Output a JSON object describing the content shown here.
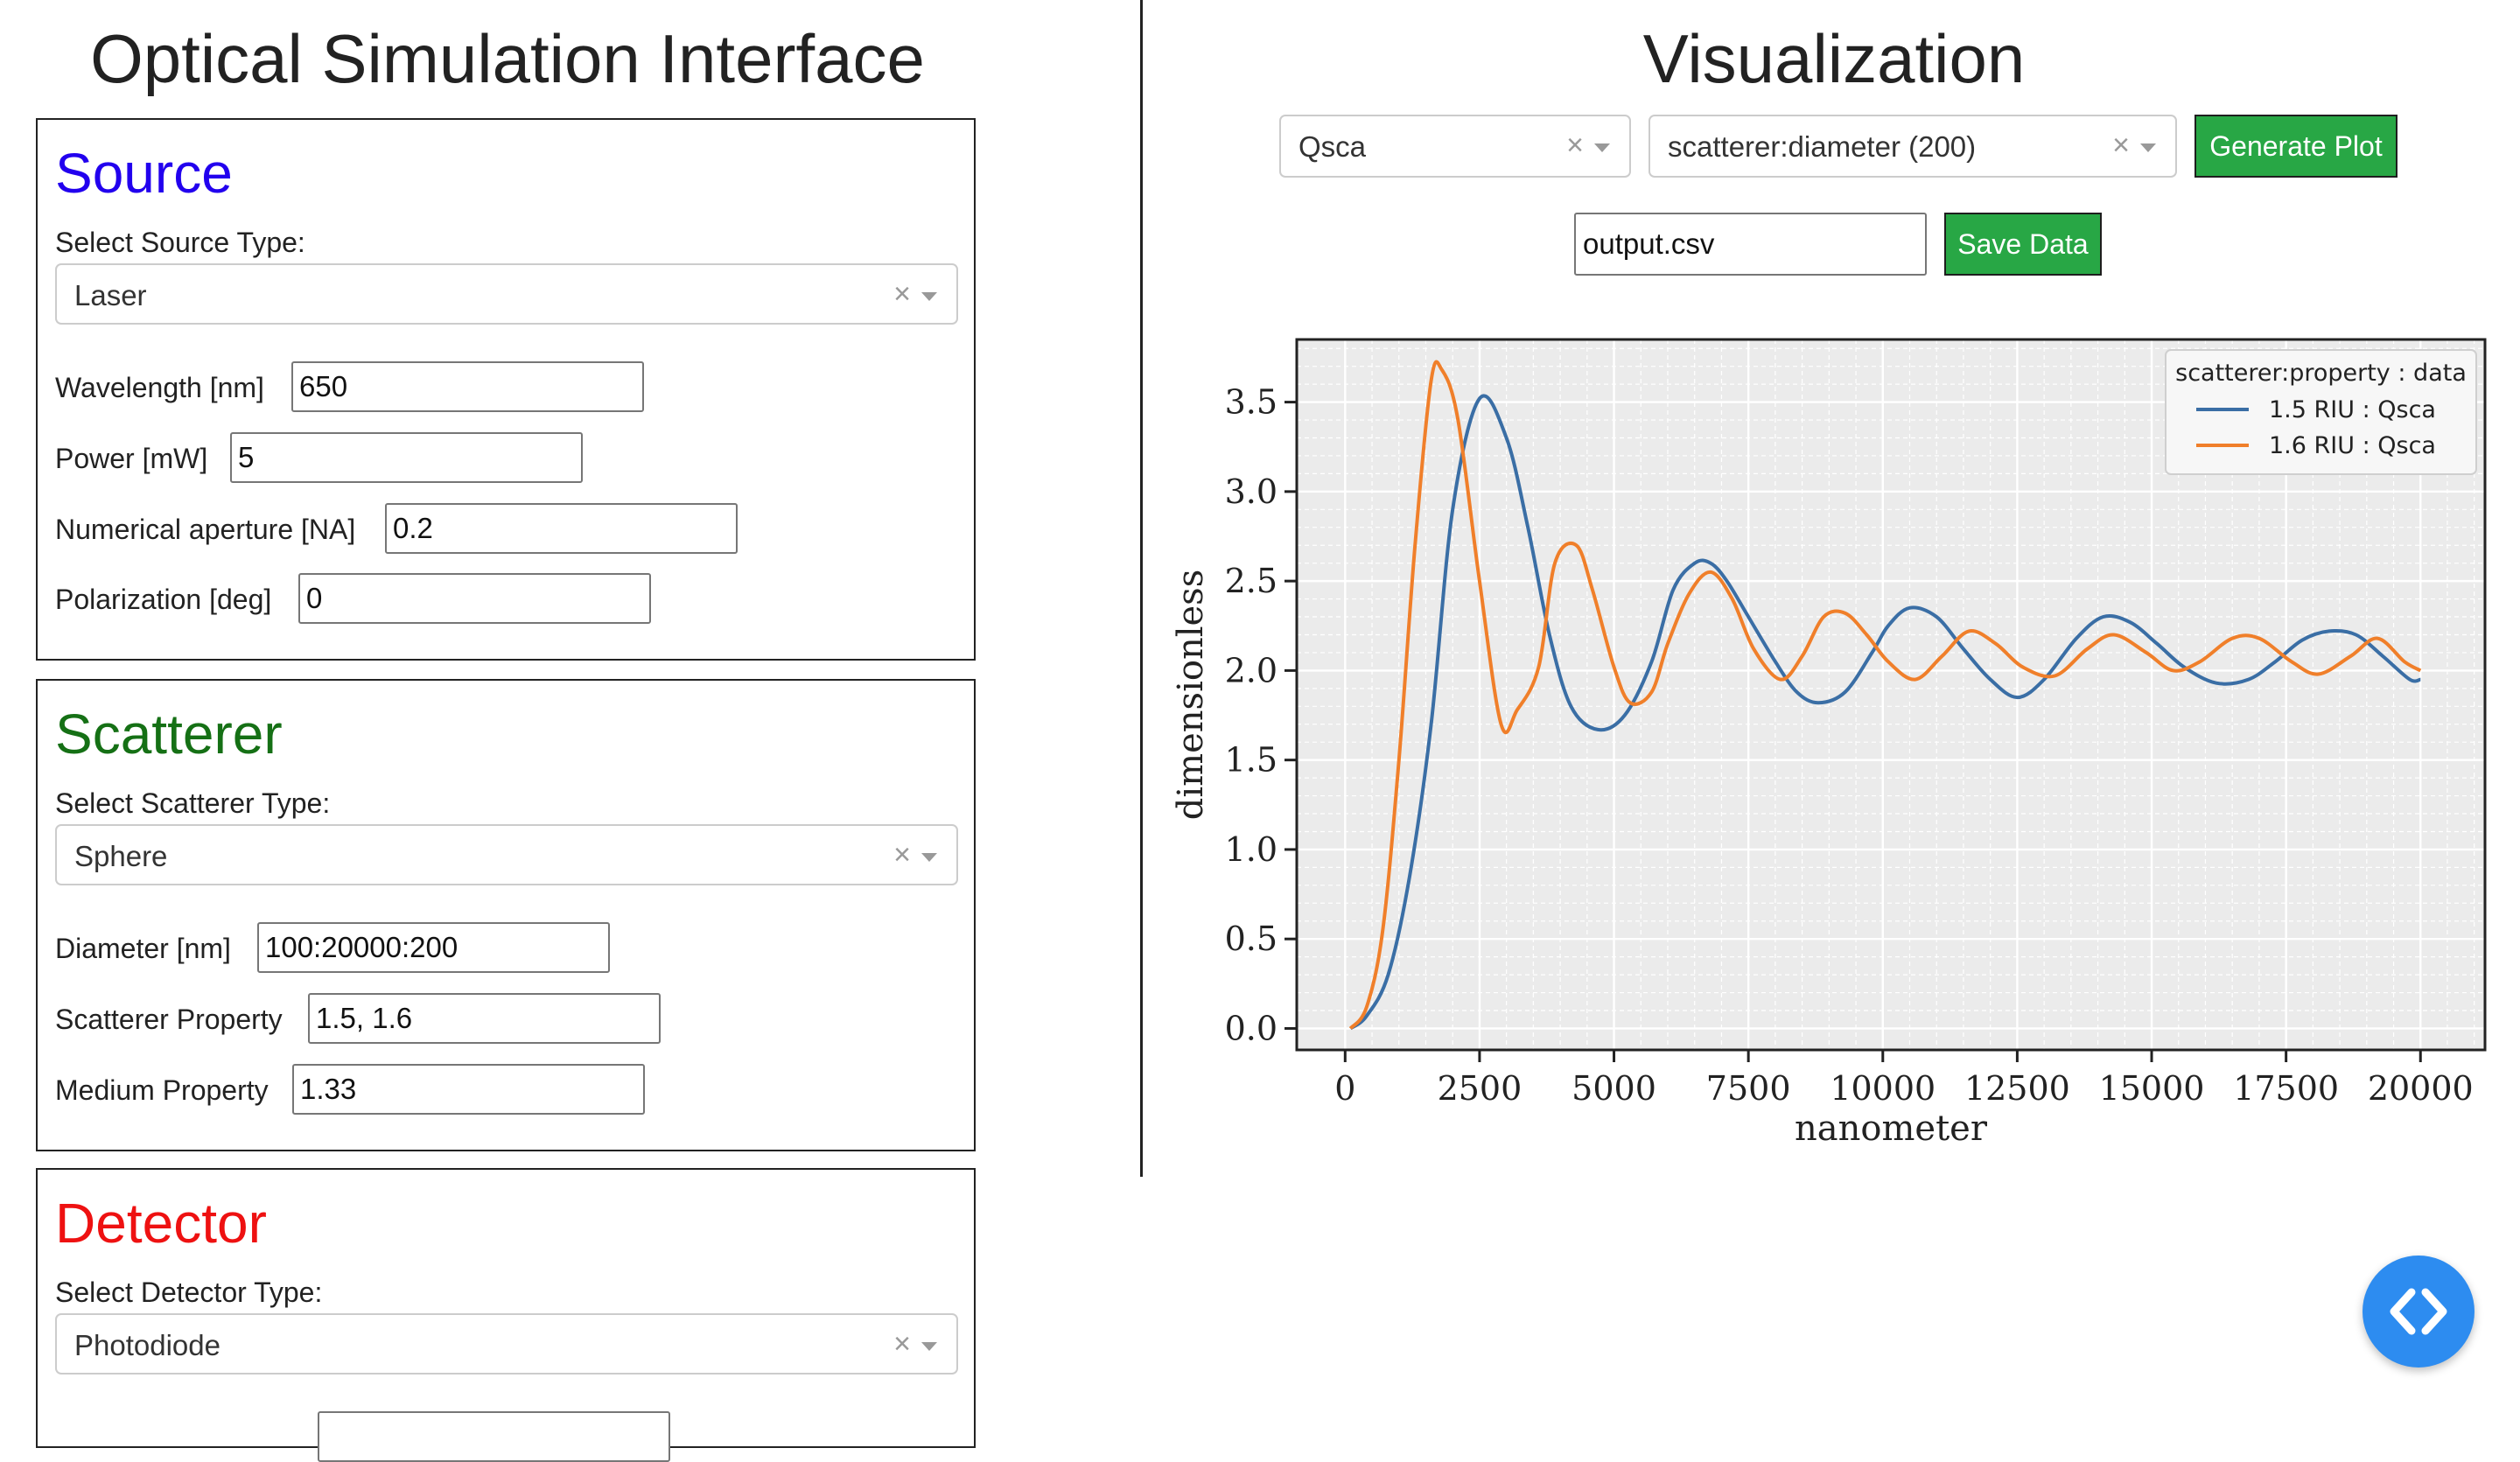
{
  "left": {
    "title": "Optical Simulation Interface",
    "source": {
      "heading": "Source",
      "heading_color": "#2200ee",
      "select_label": "Select Source Type:",
      "select_value": "Laser",
      "fields": [
        {
          "label": "Wavelength [nm]",
          "value": "650"
        },
        {
          "label": "Power [mW]",
          "value": "5"
        },
        {
          "label": "Numerical aperture [NA]",
          "value": "0.2"
        },
        {
          "label": "Polarization [deg]",
          "value": "0"
        }
      ]
    },
    "scatterer": {
      "heading": "Scatterer",
      "heading_color": "#157015",
      "select_label": "Select Scatterer Type:",
      "select_value": "Sphere",
      "fields": [
        {
          "label": "Diameter [nm]",
          "value": "100:20000:200"
        },
        {
          "label": "Scatterer Property",
          "value": "1.5, 1.6"
        },
        {
          "label": "Medium Property",
          "value": "1.33"
        }
      ]
    },
    "detector": {
      "heading": "Detector",
      "heading_color": "#ee1111",
      "select_label": "Select Detector Type:",
      "select_value": "Photodiode"
    }
  },
  "right": {
    "title": "Visualization",
    "y_select_value": "Qsca",
    "x_select_value": "scatterer:diameter (200)",
    "generate_label": "Generate Plot",
    "filename_value": "output.csv",
    "save_label": "Save Data"
  },
  "icons": {
    "clear": "close-icon",
    "dropdown": "chevron-down-icon",
    "code": "code-brackets-icon"
  },
  "colors": {
    "button_green": "#28a745",
    "fab_blue": "#2d8cf0"
  },
  "chart_data": {
    "type": "line",
    "xlabel": "nanometer",
    "ylabel": "dimensionless",
    "xlim": [
      -900,
      21200
    ],
    "ylim": [
      -0.12,
      3.85
    ],
    "xticks": [
      0,
      2500,
      5000,
      7500,
      10000,
      12500,
      15000,
      17500,
      20000
    ],
    "yticks": [
      0.0,
      0.5,
      1.0,
      1.5,
      2.0,
      2.5,
      3.0,
      3.5
    ],
    "grid": true,
    "legend_title": "scatterer:property : data",
    "legend_position": "top-right",
    "series": [
      {
        "name": "1.5 RIU : Qsca",
        "color": "#3a6ea5",
        "points": [
          [
            100,
            0.0
          ],
          [
            400,
            0.07
          ],
          [
            800,
            0.3
          ],
          [
            1200,
            0.85
          ],
          [
            1600,
            1.7
          ],
          [
            2000,
            2.9
          ],
          [
            2500,
            3.52
          ],
          [
            3000,
            3.3
          ],
          [
            3400,
            2.8
          ],
          [
            3800,
            2.2
          ],
          [
            4200,
            1.8
          ],
          [
            4700,
            1.67
          ],
          [
            5200,
            1.75
          ],
          [
            5700,
            2.05
          ],
          [
            6100,
            2.45
          ],
          [
            6500,
            2.6
          ],
          [
            6800,
            2.6
          ],
          [
            7100,
            2.5
          ],
          [
            7500,
            2.3
          ],
          [
            8000,
            2.05
          ],
          [
            8400,
            1.88
          ],
          [
            8800,
            1.82
          ],
          [
            9300,
            1.88
          ],
          [
            9800,
            2.1
          ],
          [
            10100,
            2.25
          ],
          [
            10500,
            2.35
          ],
          [
            11000,
            2.3
          ],
          [
            11500,
            2.12
          ],
          [
            12000,
            1.95
          ],
          [
            12500,
            1.85
          ],
          [
            13000,
            1.95
          ],
          [
            13600,
            2.18
          ],
          [
            14100,
            2.3
          ],
          [
            14600,
            2.27
          ],
          [
            15100,
            2.15
          ],
          [
            15600,
            2.02
          ],
          [
            16200,
            1.93
          ],
          [
            16800,
            1.95
          ],
          [
            17300,
            2.05
          ],
          [
            17800,
            2.17
          ],
          [
            18300,
            2.22
          ],
          [
            18800,
            2.2
          ],
          [
            19300,
            2.08
          ],
          [
            19800,
            1.95
          ],
          [
            20000,
            1.95
          ]
        ]
      },
      {
        "name": "1.6 RIU : Qsca",
        "color": "#f07f2a",
        "points": [
          [
            100,
            0.0
          ],
          [
            400,
            0.12
          ],
          [
            700,
            0.55
          ],
          [
            1000,
            1.5
          ],
          [
            1300,
            2.7
          ],
          [
            1600,
            3.62
          ],
          [
            1800,
            3.68
          ],
          [
            2100,
            3.4
          ],
          [
            2500,
            2.5
          ],
          [
            2900,
            1.7
          ],
          [
            3200,
            1.78
          ],
          [
            3600,
            2.02
          ],
          [
            3900,
            2.6
          ],
          [
            4300,
            2.7
          ],
          [
            4600,
            2.45
          ],
          [
            5000,
            2.02
          ],
          [
            5300,
            1.82
          ],
          [
            5700,
            1.88
          ],
          [
            6000,
            2.15
          ],
          [
            6400,
            2.43
          ],
          [
            6800,
            2.55
          ],
          [
            7200,
            2.4
          ],
          [
            7600,
            2.12
          ],
          [
            8100,
            1.95
          ],
          [
            8500,
            2.08
          ],
          [
            8900,
            2.3
          ],
          [
            9300,
            2.32
          ],
          [
            9700,
            2.2
          ],
          [
            10100,
            2.05
          ],
          [
            10600,
            1.95
          ],
          [
            11100,
            2.08
          ],
          [
            11600,
            2.22
          ],
          [
            12100,
            2.15
          ],
          [
            12600,
            2.02
          ],
          [
            13200,
            1.97
          ],
          [
            13800,
            2.12
          ],
          [
            14300,
            2.2
          ],
          [
            14900,
            2.1
          ],
          [
            15400,
            2.0
          ],
          [
            15900,
            2.05
          ],
          [
            16500,
            2.18
          ],
          [
            17000,
            2.18
          ],
          [
            17600,
            2.05
          ],
          [
            18100,
            1.98
          ],
          [
            18700,
            2.08
          ],
          [
            19200,
            2.18
          ],
          [
            19700,
            2.05
          ],
          [
            20000,
            2.0
          ]
        ]
      }
    ]
  }
}
